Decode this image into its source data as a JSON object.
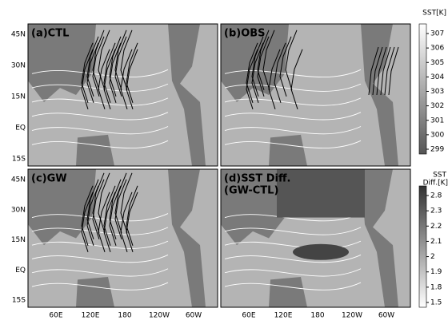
{
  "panels": [
    {
      "label": "(a)CTL"
    },
    {
      "label": "(b)OBS"
    },
    {
      "label": "(c)GW"
    },
    {
      "label": "(d)SST Diff.",
      "sublabel": "(GW-CTL)"
    }
  ],
  "lat_labels": [
    "45N",
    "30N",
    "15N",
    "EQ",
    "15S"
  ],
  "lon_labels": [
    "60E",
    "120E",
    "180",
    "120W",
    "60W"
  ],
  "colorbars": [
    {
      "title": "SST[K]",
      "ticks": [
        "307",
        "306",
        "305",
        "304",
        "303",
        "302",
        "301",
        "300",
        "299"
      ]
    },
    {
      "title": "SST",
      "title2": "Diff.[K]",
      "ticks": [
        "2.8",
        "2.3",
        "2.2",
        "2.1",
        "2",
        "1.9",
        "1.8",
        "1.5"
      ]
    }
  ]
}
